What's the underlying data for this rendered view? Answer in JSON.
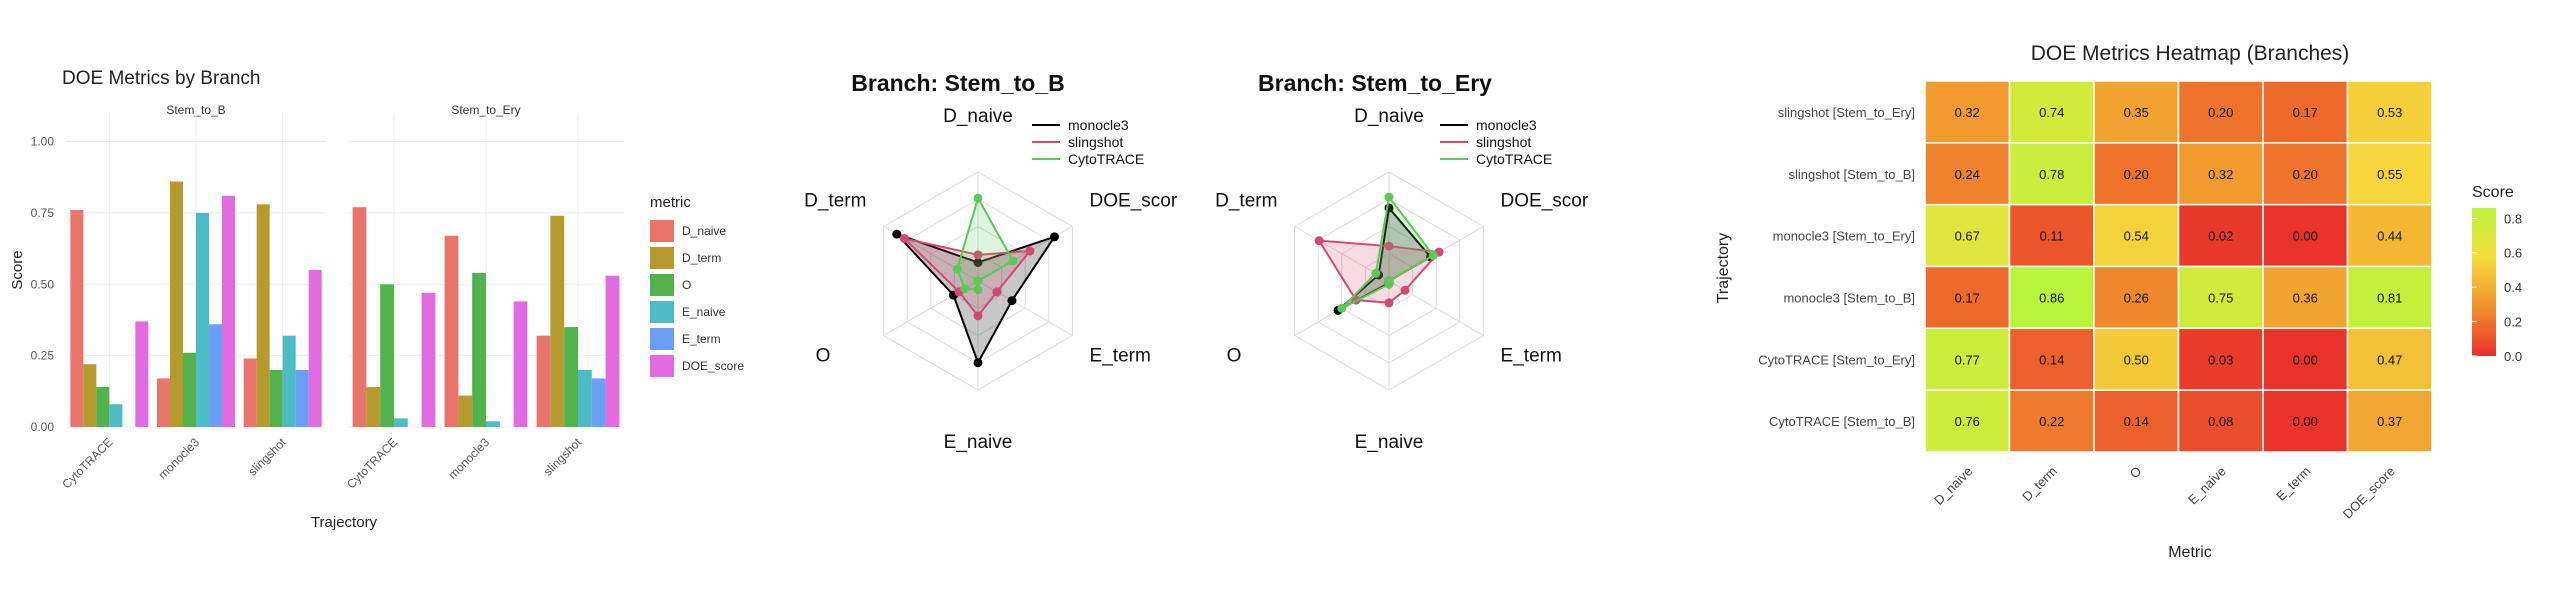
{
  "chart_data": [
    {
      "type": "bar",
      "title": "DOE Metrics by Branch",
      "xlabel": "Trajectory",
      "ylabel": "Score",
      "ylim": [
        0,
        1.1
      ],
      "yticks": [
        "0.00",
        "0.25",
        "0.50",
        "0.75",
        "1.00"
      ],
      "ytick_values": [
        0,
        0.25,
        0.5,
        0.75,
        1.0
      ],
      "legend_title": "metric",
      "legend_position": "right",
      "grid": true,
      "metrics": [
        "D_naive",
        "D_term",
        "O",
        "E_naive",
        "E_term",
        "DOE_score"
      ],
      "colors": [
        "#e8756b",
        "#b59a2d",
        "#53b14e",
        "#4ebcc4",
        "#6a9ff5",
        "#e16ce1"
      ],
      "panels": [
        {
          "title": "Stem_to_B",
          "categories": [
            "CytoTRACE",
            "monocle3",
            "slingshot"
          ],
          "values": [
            [
              0.76,
              0.22,
              0.14,
              0.08,
              0.0,
              0.37
            ],
            [
              0.17,
              0.86,
              0.26,
              0.75,
              0.36,
              0.81
            ],
            [
              0.24,
              0.78,
              0.2,
              0.32,
              0.2,
              0.55
            ]
          ]
        },
        {
          "title": "Stem_to_Ery",
          "categories": [
            "CytoTRACE",
            "monocle3",
            "slingshot"
          ],
          "values": [
            [
              0.77,
              0.14,
              0.5,
              0.03,
              0.0,
              0.47
            ],
            [
              0.67,
              0.11,
              0.54,
              0.02,
              0.0,
              0.44
            ],
            [
              0.32,
              0.74,
              0.35,
              0.2,
              0.17,
              0.53
            ]
          ]
        }
      ]
    },
    {
      "type": "radar",
      "title": "Branch: Stem_to_B",
      "axes": [
        "D_naive",
        "DOE_score",
        "E_term",
        "E_naive",
        "O",
        "D_term"
      ],
      "axis_labels": [
        "D_naive",
        "DOE_scor",
        "E_term",
        "E_naive",
        "O",
        "D_term"
      ],
      "legend_position": "top-right",
      "series": [
        {
          "name": "monocle3",
          "color": "#000000",
          "values": [
            0.17,
            0.81,
            0.36,
            0.75,
            0.26,
            0.86
          ]
        },
        {
          "name": "slingshot",
          "color": "#d24a72",
          "values": [
            0.24,
            0.55,
            0.2,
            0.32,
            0.2,
            0.78
          ]
        },
        {
          "name": "CytoTRACE",
          "color": "#5ec85a",
          "values": [
            0.76,
            0.37,
            0.0,
            0.08,
            0.14,
            0.22
          ]
        }
      ]
    },
    {
      "type": "radar",
      "title": "Branch: Stem_to_Ery",
      "axes": [
        "D_naive",
        "DOE_score",
        "E_term",
        "E_naive",
        "O",
        "D_term"
      ],
      "axis_labels": [
        "D_naive",
        "DOE_scor",
        "E_term",
        "E_naive",
        "O",
        "D_term"
      ],
      "legend_position": "top-right",
      "series": [
        {
          "name": "monocle3",
          "color": "#000000",
          "values": [
            0.67,
            0.44,
            0.0,
            0.02,
            0.54,
            0.11
          ]
        },
        {
          "name": "slingshot",
          "color": "#d24a72",
          "values": [
            0.32,
            0.53,
            0.17,
            0.2,
            0.35,
            0.74
          ]
        },
        {
          "name": "CytoTRACE",
          "color": "#5ec85a",
          "values": [
            0.77,
            0.47,
            0.0,
            0.03,
            0.5,
            0.14
          ]
        }
      ]
    },
    {
      "type": "heatmap",
      "title": "DOE Metrics Heatmap (Branches)",
      "xlabel": "Metric",
      "ylabel": "Trajectory",
      "x": [
        "D_naive",
        "D_term",
        "O",
        "E_naive",
        "E_term",
        "DOE_score"
      ],
      "y": [
        "slingshot [Stem_to_Ery]",
        "slingshot [Stem_to_B]",
        "monocle3 [Stem_to_Ery]",
        "monocle3 [Stem_to_B]",
        "CytoTRACE [Stem_to_Ery]",
        "CytoTRACE [Stem_to_B]"
      ],
      "values": [
        [
          0.32,
          0.74,
          0.35,
          0.2,
          0.17,
          0.53
        ],
        [
          0.24,
          0.78,
          0.2,
          0.32,
          0.2,
          0.55
        ],
        [
          0.67,
          0.11,
          0.54,
          0.02,
          0.0,
          0.44
        ],
        [
          0.17,
          0.86,
          0.26,
          0.75,
          0.36,
          0.81
        ],
        [
          0.77,
          0.14,
          0.5,
          0.03,
          0.0,
          0.47
        ],
        [
          0.76,
          0.22,
          0.14,
          0.08,
          0.0,
          0.37
        ]
      ],
      "labels": [
        [
          "0.32",
          "0.74",
          "0.35",
          "0.20",
          "0.17",
          "0.53"
        ],
        [
          "0.24",
          "0.78",
          "0.20",
          "0.32",
          "0.20",
          "0.55"
        ],
        [
          "0.67",
          "0.11",
          "0.54",
          "0.02",
          "0.00",
          "0.44"
        ],
        [
          "0.17",
          "0.86",
          "0.26",
          "0.75",
          "0.36",
          "0.81"
        ],
        [
          "0.77",
          "0.14",
          "0.50",
          "0.03",
          "0.00",
          "0.47"
        ],
        [
          "0.76",
          "0.22",
          "0.14",
          "0.08",
          "0.00",
          "0.37"
        ]
      ],
      "legend_title": "Score",
      "legend_ticks": [
        "0.0",
        "0.2",
        "0.4",
        "0.6",
        "0.8"
      ],
      "legend_tick_values": [
        0,
        0.2,
        0.4,
        0.6,
        0.8
      ],
      "colorscale": [
        "#e8322a",
        "#f0912c",
        "#f5dc3c",
        "#b9f53b"
      ],
      "range": [
        0,
        0.86
      ]
    }
  ]
}
